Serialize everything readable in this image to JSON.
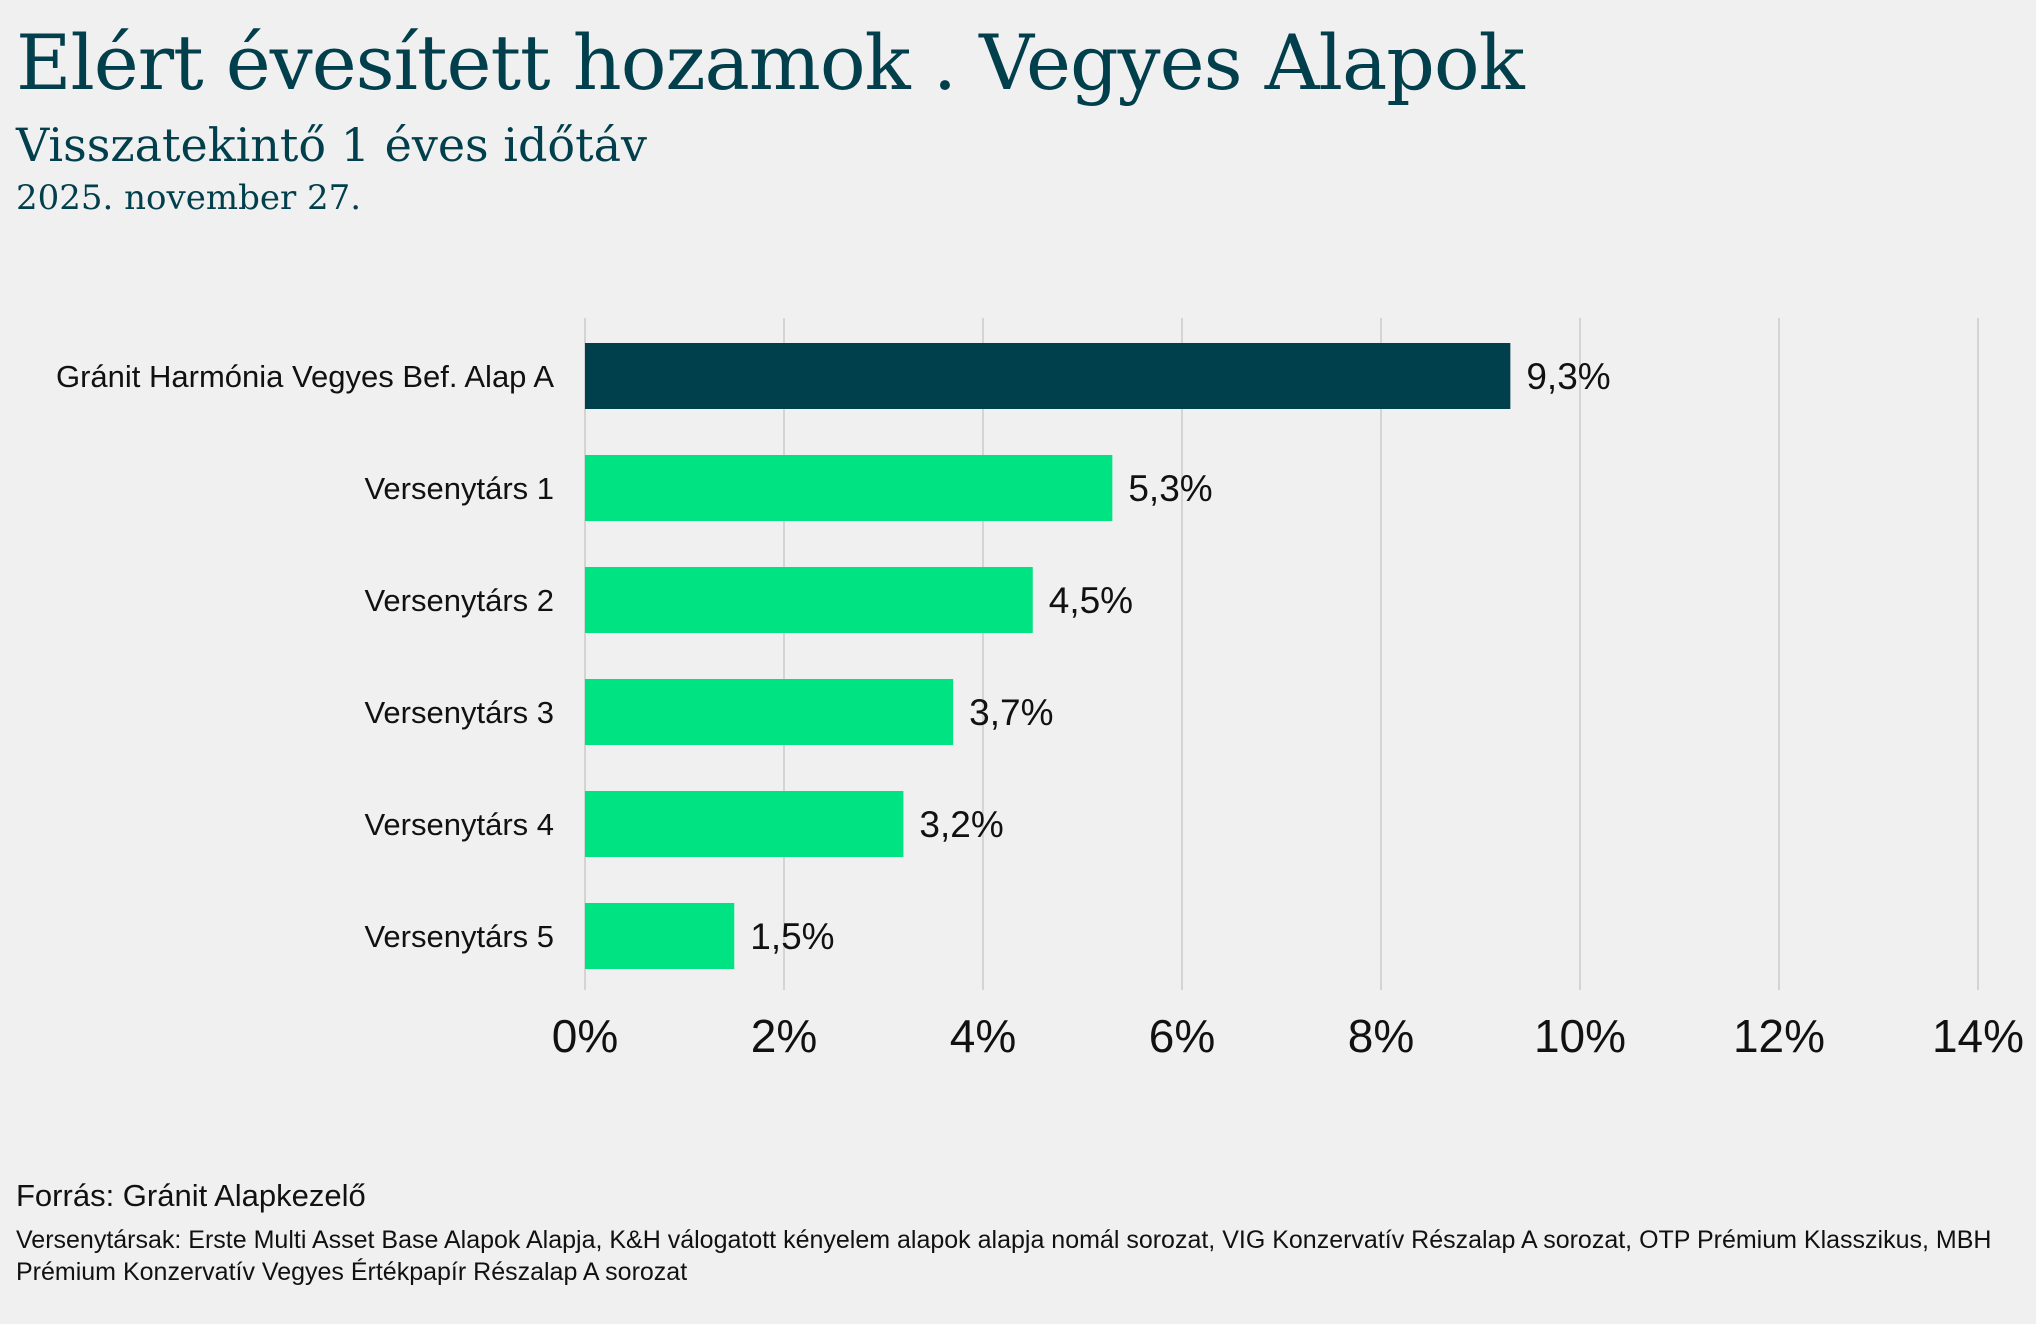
{
  "header": {
    "title": "Elért évesített hozamok . Vegyes Alapok",
    "subtitle": "Visszatekintő 1 éves időtáv",
    "date": "2025. november 27."
  },
  "footer": {
    "source": "Forrás: Gránit Alapkezelő",
    "note": "Versenytársak: Erste Multi Asset Base Alapok Alapja, K&H válogatott kényelem alapok alapja nomál sorozat, VIG Konzervatív Részalap A sorozat, OTP Prémium Klasszikus, MBH Prémium Konzervatív Vegyes Értékpapír Részalap A sorozat"
  },
  "colors": {
    "highlight": "#00404c",
    "bar": "#00e383",
    "grid": "#d4d4d4",
    "text": "#111111",
    "title": "#003f4b"
  },
  "chart_data": {
    "type": "bar",
    "orientation": "horizontal",
    "categories": [
      "Gránit Harmónia Vegyes Bef. Alap A",
      "Versenytárs 1",
      "Versenytárs 2",
      "Versenytárs 3",
      "Versenytárs 4",
      "Versenytárs 5"
    ],
    "values": [
      9.3,
      5.3,
      4.5,
      3.7,
      3.2,
      1.5
    ],
    "value_labels": [
      "9,3%",
      "5,3%",
      "4,5%",
      "3,7%",
      "3,2%",
      "1,5%"
    ],
    "highlight_index": 0,
    "xlim": [
      0,
      14
    ],
    "x_ticks": [
      0,
      2,
      4,
      6,
      8,
      10,
      12,
      14
    ],
    "x_tick_labels": [
      "0%",
      "2%",
      "4%",
      "6%",
      "8%",
      "10%",
      "12%",
      "14%"
    ],
    "grid": true,
    "legend": false
  }
}
